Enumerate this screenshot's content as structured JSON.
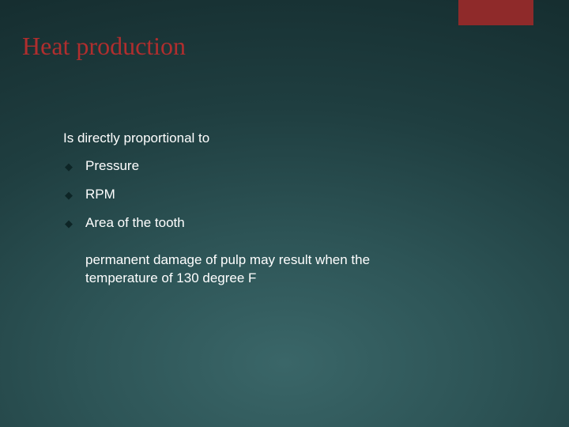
{
  "slide": {
    "title": "Heat production",
    "title_color": "#b02e2e",
    "title_fontsize": 32,
    "intro": "Is directly proportional to",
    "intro_fontsize": 17,
    "bullets": [
      {
        "label": "Pressure"
      },
      {
        "label": "RPM"
      },
      {
        "label": "Area of the tooth"
      }
    ],
    "bullet_fontsize": 17,
    "bullet_marker": "◆",
    "bullet_marker_color": "#0d2526",
    "note": " permanent damage of pulp may result when the temperature of 130 degree F",
    "note_fontsize": 17,
    "accent_bar_color": "#8f2a2a",
    "text_color": "#ffffff"
  }
}
